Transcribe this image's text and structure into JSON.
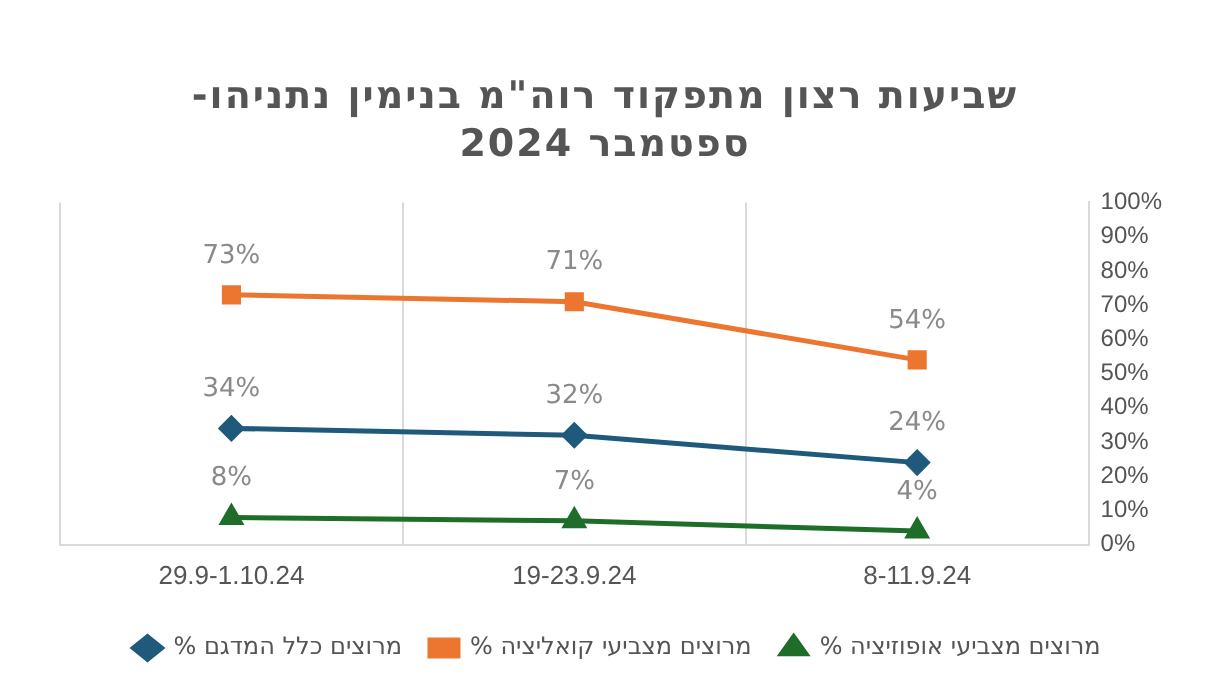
{
  "chart_data": {
    "type": "line",
    "title": "שביעות רצון מתפקוד רוה\"מ בנימין נתניהו- ספטמבר 2024",
    "categories": [
      "29.9-1.10.24",
      "19-23.9.24",
      "8-11.9.24"
    ],
    "series": [
      {
        "name": "% מרוצים כלל המדגם",
        "color": "#1f5a7c",
        "marker": "diamond",
        "values": [
          34,
          32,
          24
        ],
        "value_labels": [
          "34%",
          "32%",
          "24%"
        ]
      },
      {
        "name": "% מרוצים מצביעי קואליציה",
        "color": "#ec7530",
        "marker": "square",
        "values": [
          73,
          71,
          54
        ],
        "value_labels": [
          "73%",
          "71%",
          "54%"
        ]
      },
      {
        "name": "% מרוצים מצביעי אופוזיציה",
        "color": "#1e6e2a",
        "marker": "triangle",
        "values": [
          8,
          7,
          4
        ],
        "value_labels": [
          "8%",
          "7%",
          "4%"
        ]
      }
    ],
    "ylim": [
      0,
      100
    ],
    "yticks": [
      {
        "value": 0,
        "label": "0%"
      },
      {
        "value": 10,
        "label": "10%"
      },
      {
        "value": 20,
        "label": "20%"
      },
      {
        "value": 30,
        "label": "30%"
      },
      {
        "value": 40,
        "label": "40%"
      },
      {
        "value": 50,
        "label": "50%"
      },
      {
        "value": 60,
        "label": "60%"
      },
      {
        "value": 70,
        "label": "70%"
      },
      {
        "value": 80,
        "label": "80%"
      },
      {
        "value": 90,
        "label": "90%"
      },
      {
        "value": 100,
        "label": "100%"
      }
    ],
    "grid": "x",
    "legend": "bottom"
  }
}
